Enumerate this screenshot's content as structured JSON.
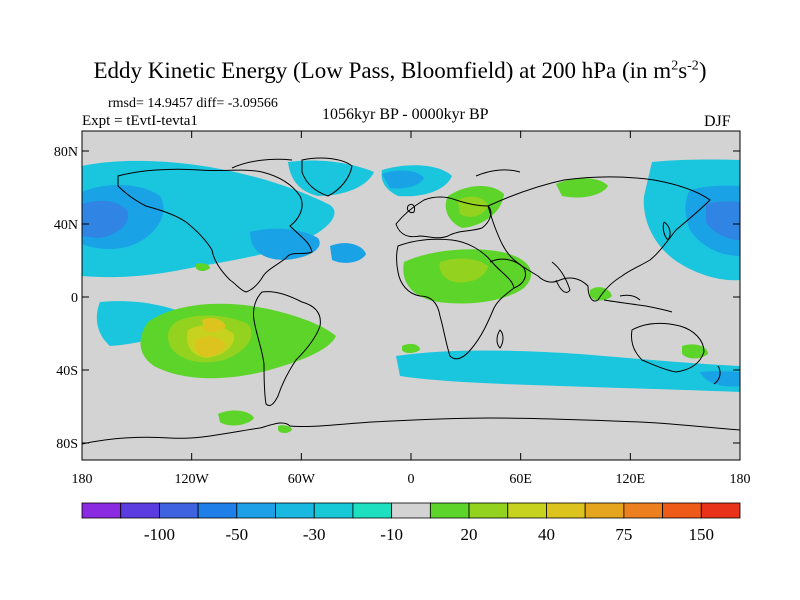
{
  "figure": {
    "title_main": "Eddy Kinetic Energy (Low Pass, Bloomfield) at 200 hPa (in m",
    "title_sup1": "2",
    "title_mid": "s",
    "title_sup2": "-2",
    "title_end": ")",
    "stats": "rmsd= 14.9457 diff= -3.09566",
    "expt": "Expt = tEvtI-tevta1",
    "period": "1056kyr BP - 0000kyr BP",
    "season": "DJF"
  },
  "map": {
    "lat_labels": [
      "80N",
      "40N",
      "0",
      "40S",
      "80S"
    ],
    "lon_labels": [
      "180",
      "120W",
      "60W",
      "0",
      "60E",
      "120E",
      "180"
    ],
    "background_color": "#d3d3d3"
  },
  "colorbar": {
    "colors": [
      "#8a2be2",
      "#5a3ce0",
      "#3f62e0",
      "#1f7fe8",
      "#1ea0e8",
      "#19b8e0",
      "#17c9d6",
      "#1ce0c0",
      "#d3d3d3",
      "#5dd42a",
      "#93d21e",
      "#c6d21e",
      "#dcc31e",
      "#e6a51e",
      "#ec7f1e",
      "#ee5a18",
      "#e8321a"
    ],
    "labels": [
      "-100",
      "-50",
      "-30",
      "-10",
      "20",
      "40",
      "75",
      "150"
    ]
  }
}
